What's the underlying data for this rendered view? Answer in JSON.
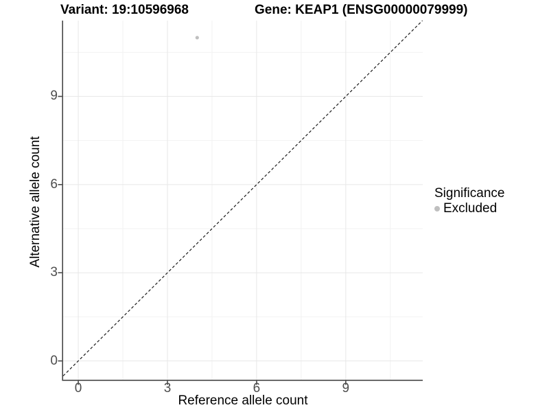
{
  "figure": {
    "title_left": "Variant: 19:10596968",
    "title_right": "Gene: KEAP1 (ENSG00000079999)"
  },
  "chart_data": {
    "type": "scatter",
    "xlabel": "Reference allele count",
    "ylabel": "Alternative allele count",
    "x_ticks": [
      0,
      3,
      6,
      9
    ],
    "y_ticks": [
      0,
      3,
      6,
      9
    ],
    "x_minor_ticks": [
      1.5,
      4.5,
      7.5,
      10.5
    ],
    "y_minor_ticks": [
      1.5,
      4.5,
      7.5,
      10.5
    ],
    "xlim": [
      -0.51,
      11.59
    ],
    "ylim": [
      -0.64,
      11.58
    ],
    "grid": "major+minor",
    "points": [
      {
        "x": 4,
        "y": 11,
        "series": "Excluded"
      }
    ],
    "reference_line": {
      "slope": 1,
      "intercept": 0,
      "style": "dashed"
    },
    "legend": {
      "title": "Significance",
      "position": "right",
      "items": [
        {
          "label": "Excluded",
          "color": "#bfbfbf"
        }
      ]
    },
    "colors": {
      "point": "#bfbfbf",
      "axis_line": "#474747",
      "tick_label": "#4d4d4d",
      "grid_major": "#e7e7e7",
      "grid_minor": "#f2f2f2",
      "reference_line": "#1a1a1a",
      "background": "#ffffff"
    }
  }
}
